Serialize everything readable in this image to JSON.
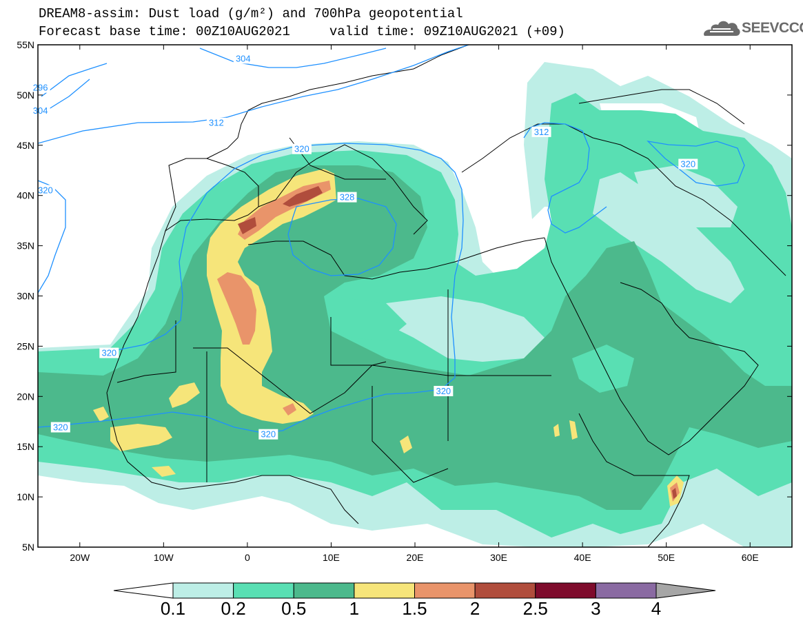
{
  "header": {
    "title": "DREAM8-assim: Dust load (g/m²) and 700hPa geopotential",
    "subtitle": "Forecast base time: 00Z10AUG2021     valid time: 09Z10AUG2021 (+09)"
  },
  "logo": {
    "text": "SEEVCCC",
    "icon": "cloud-logo-icon"
  },
  "map": {
    "region": "North Africa, Europe and Middle East",
    "lon_range": [
      -25,
      65
    ],
    "lat_range": [
      5,
      55
    ],
    "lat_ticks": [
      {
        "value": 55,
        "label": "55N"
      },
      {
        "value": 50,
        "label": "50N"
      },
      {
        "value": 45,
        "label": "45N"
      },
      {
        "value": 40,
        "label": "40N"
      },
      {
        "value": 35,
        "label": "35N"
      },
      {
        "value": 30,
        "label": "30N"
      },
      {
        "value": 25,
        "label": "25N"
      },
      {
        "value": 20,
        "label": "20N"
      },
      {
        "value": 15,
        "label": "15N"
      },
      {
        "value": 10,
        "label": "10N"
      },
      {
        "value": 5,
        "label": "5N"
      }
    ],
    "lon_ticks": [
      {
        "value": -20,
        "label": "20W"
      },
      {
        "value": -10,
        "label": "10W"
      },
      {
        "value": 0,
        "label": "0"
      },
      {
        "value": 10,
        "label": "10E"
      },
      {
        "value": 20,
        "label": "20E"
      },
      {
        "value": 30,
        "label": "30E"
      },
      {
        "value": 40,
        "label": "40E"
      },
      {
        "value": 50,
        "label": "50E"
      },
      {
        "value": 60,
        "label": "60E"
      }
    ],
    "contour_labels": [
      {
        "text": "304",
        "lon": -0.5,
        "lat": 53.6
      },
      {
        "text": "296",
        "lon": -24.7,
        "lat": 50.7
      },
      {
        "text": "304",
        "lon": -24.7,
        "lat": 48.4
      },
      {
        "text": "312",
        "lon": -3.7,
        "lat": 47.2
      },
      {
        "text": "320",
        "lon": 6.5,
        "lat": 44.6
      },
      {
        "text": "312",
        "lon": 35.1,
        "lat": 46.3
      },
      {
        "text": "320",
        "lon": 52.6,
        "lat": 43.1
      },
      {
        "text": "320",
        "lon": -24.1,
        "lat": 40.5
      },
      {
        "text": "328",
        "lon": 11.9,
        "lat": 39.8
      },
      {
        "text": "320",
        "lon": -16.5,
        "lat": 24.3
      },
      {
        "text": "320",
        "lon": 23.4,
        "lat": 20.5
      },
      {
        "text": "320",
        "lon": -22.3,
        "lat": 16.9
      },
      {
        "text": "320",
        "lon": 2.5,
        "lat": 16.2
      }
    ]
  },
  "colorbar": {
    "labels": [
      "0.1",
      "0.2",
      "0.5",
      "1",
      "1.5",
      "2",
      "2.5",
      "3",
      "4"
    ],
    "colors": [
      "#bdeee6",
      "#59dfb3",
      "#4cb98c",
      "#f6e57a",
      "#e9946a",
      "#b04d3c",
      "#7e0b2c",
      "#8a6aa2"
    ],
    "under_color": "#ffffff",
    "over_color": "#a6a6a6"
  }
}
